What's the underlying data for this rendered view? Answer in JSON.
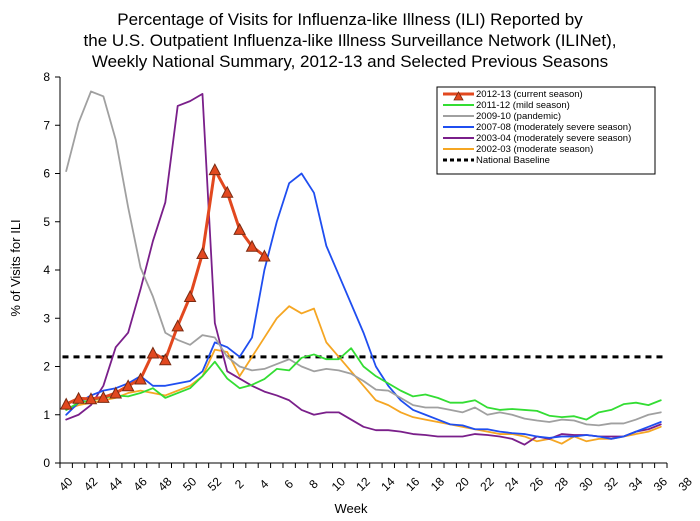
{
  "chart_data": {
    "type": "line",
    "title_lines": [
      "Percentage of Visits for Influenza-like Illness (ILI) Reported by",
      "the U.S. Outpatient Influenza-like Illness Surveillance Network (ILINet),",
      "Weekly National Summary, 2012-13 and Selected Previous Seasons"
    ],
    "xlabel": "Week",
    "ylabel": "% of Visits for ILI",
    "ylim": [
      0,
      8
    ],
    "yticks": [
      0,
      1,
      2,
      3,
      4,
      5,
      6,
      7,
      8
    ],
    "x_tick_labels": [
      "40",
      "42",
      "44",
      "46",
      "48",
      "50",
      "52",
      "2",
      "4",
      "6",
      "8",
      "10",
      "12",
      "14",
      "16",
      "18",
      "20",
      "22",
      "24",
      "26",
      "28",
      "30",
      "32",
      "34",
      "36",
      "38"
    ],
    "grid": false,
    "legend_position": "top-right",
    "baseline": {
      "name": "National Baseline",
      "value": 2.2,
      "color": "#000000"
    },
    "series": [
      {
        "name": "2012-13 (current season)",
        "color": "#e2481f",
        "marker": "triangle",
        "values": [
          1.22,
          1.34,
          1.33,
          1.36,
          1.45,
          1.6,
          1.74,
          2.28,
          2.14,
          2.84,
          3.45,
          4.34,
          6.08,
          5.61,
          4.84,
          4.49,
          4.29
        ]
      },
      {
        "name": "2011-12 (mild season)",
        "color": "#33dd33",
        "values": [
          1.1,
          1.25,
          1.3,
          1.35,
          1.4,
          1.38,
          1.45,
          1.55,
          1.35,
          1.45,
          1.55,
          1.8,
          2.1,
          1.75,
          1.55,
          1.62,
          1.74,
          1.95,
          1.92,
          2.18,
          2.25,
          2.15,
          2.15,
          2.38,
          2.0,
          1.8,
          1.65,
          1.5,
          1.38,
          1.42,
          1.35,
          1.25,
          1.25,
          1.3,
          1.15,
          1.1,
          1.12,
          1.1,
          1.08,
          0.98,
          0.95,
          0.97,
          0.9,
          1.05,
          1.1,
          1.22,
          1.25,
          1.2,
          1.3
        ]
      },
      {
        "name": "2009-10 (pandemic)",
        "color": "#a0a0a0",
        "values": [
          6.05,
          7.05,
          7.7,
          7.6,
          6.7,
          5.3,
          4.05,
          3.45,
          2.7,
          2.55,
          2.45,
          2.65,
          2.6,
          2.2,
          2.0,
          1.92,
          1.95,
          2.05,
          2.15,
          2.0,
          1.9,
          1.95,
          1.92,
          1.85,
          1.7,
          1.52,
          1.5,
          1.35,
          1.2,
          1.15,
          1.15,
          1.1,
          1.05,
          1.15,
          1.0,
          1.05,
          1.0,
          0.92,
          0.88,
          0.85,
          0.9,
          0.88,
          0.8,
          0.78,
          0.82,
          0.82,
          0.9,
          1.0,
          1.05
        ]
      },
      {
        "name": "2007-08 (moderately severe season)",
        "color": "#1f4ef0",
        "values": [
          1.0,
          1.25,
          1.4,
          1.5,
          1.55,
          1.65,
          1.8,
          1.6,
          1.6,
          1.65,
          1.7,
          1.9,
          2.5,
          2.4,
          2.2,
          2.6,
          4.0,
          5.0,
          5.8,
          6.0,
          5.6,
          4.5,
          3.9,
          3.3,
          2.7,
          2.0,
          1.6,
          1.3,
          1.1,
          1.0,
          0.9,
          0.8,
          0.78,
          0.7,
          0.7,
          0.65,
          0.62,
          0.6,
          0.55,
          0.52,
          0.55,
          0.55,
          0.58,
          0.55,
          0.5,
          0.55,
          0.65,
          0.75,
          0.85
        ]
      },
      {
        "name": "2003-04 (moderately severe season)",
        "color": "#7a1f8a",
        "values": [
          0.9,
          1.0,
          1.2,
          1.6,
          2.4,
          2.7,
          3.6,
          4.6,
          5.4,
          7.4,
          7.5,
          7.65,
          2.9,
          1.9,
          1.75,
          1.6,
          1.48,
          1.4,
          1.3,
          1.1,
          1.0,
          1.05,
          1.05,
          0.9,
          0.75,
          0.68,
          0.68,
          0.65,
          0.6,
          0.58,
          0.55,
          0.55,
          0.55,
          0.6,
          0.58,
          0.55,
          0.5,
          0.38,
          0.55,
          0.5,
          0.6,
          0.58,
          0.58,
          0.55,
          0.55,
          0.55,
          0.65,
          0.7,
          0.8
        ]
      },
      {
        "name": "2002-03 (moderate season)",
        "color": "#f5a623",
        "values": [
          1.1,
          1.2,
          1.25,
          1.3,
          1.35,
          1.45,
          1.5,
          1.45,
          1.4,
          1.5,
          1.6,
          1.8,
          2.35,
          2.3,
          1.8,
          2.2,
          2.6,
          3.0,
          3.25,
          3.1,
          3.2,
          2.5,
          2.2,
          1.9,
          1.6,
          1.3,
          1.2,
          1.05,
          0.95,
          0.9,
          0.85,
          0.8,
          0.75,
          0.7,
          0.65,
          0.6,
          0.6,
          0.55,
          0.45,
          0.5,
          0.4,
          0.55,
          0.45,
          0.5,
          0.5,
          0.55,
          0.6,
          0.65,
          0.75
        ]
      }
    ]
  }
}
